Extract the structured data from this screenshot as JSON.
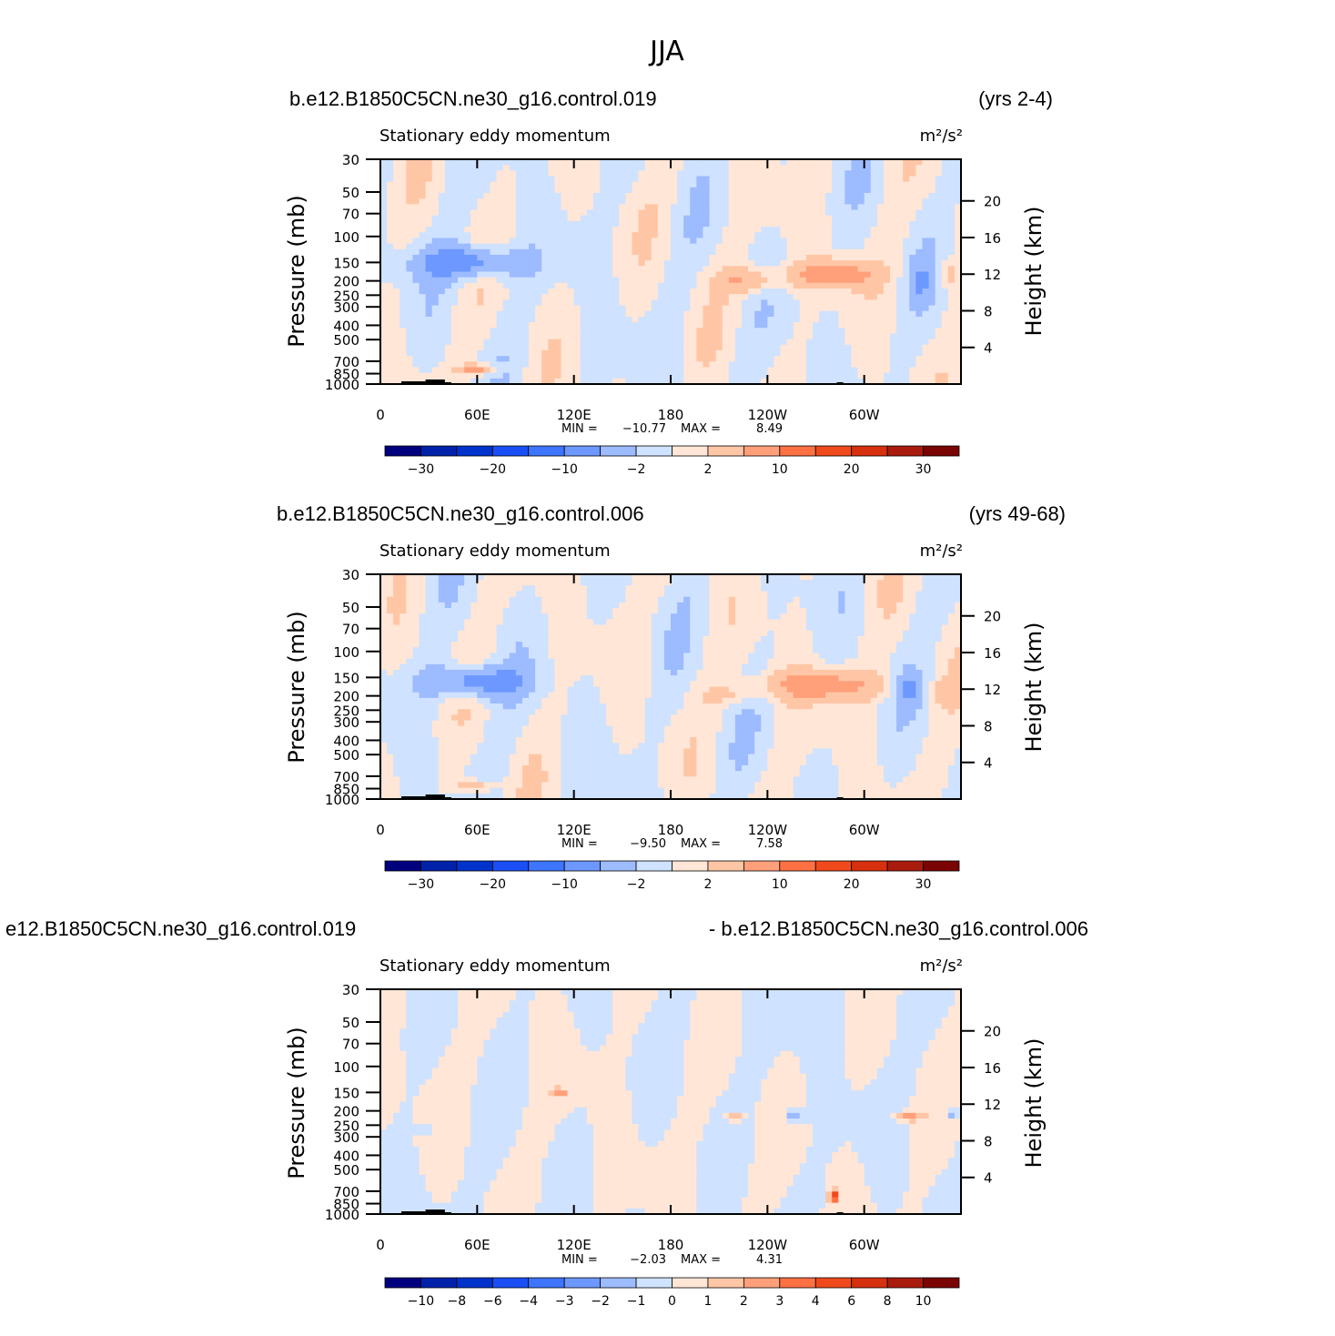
{
  "title": "JJA",
  "colors": {
    "palette": [
      "#00007f",
      "#0022aa",
      "#0033cc",
      "#1a4ff5",
      "#3d75ff",
      "#6c98ff",
      "#9dbbff",
      "#cfe2ff",
      "#ffe6d6",
      "#ffc6a6",
      "#ffa07a",
      "#ff7043",
      "#f04a1c",
      "#d6300e",
      "#a91b0d",
      "#7a0403"
    ],
    "land": "#000000"
  },
  "panels": [
    {
      "left_title": "b.e12.B1850C5CN.ne30_g16.control.019",
      "right_title": "(yrs 2-4)",
      "variable": "Stationary eddy momentum",
      "units": "m²/s²",
      "min_label": "MIN =",
      "min_value": "−10.77",
      "max_label": "MAX =",
      "max_value": "8.49",
      "colorbar_labels": [
        "−30",
        "−20",
        "−10",
        "−2",
        "2",
        "10",
        "20",
        "30"
      ]
    },
    {
      "left_title": "b.e12.B1850C5CN.ne30_g16.control.006",
      "right_title": "(yrs 49-68)",
      "variable": "Stationary eddy momentum",
      "units": "m²/s²",
      "min_label": "MIN =",
      "min_value": "−9.50",
      "max_label": "MAX =",
      "max_value": "7.58",
      "colorbar_labels": [
        "−30",
        "−20",
        "−10",
        "−2",
        "2",
        "10",
        "20",
        "30"
      ]
    },
    {
      "left_title": "e12.B1850C5CN.ne30_g16.control.019",
      "right_title": "- b.e12.B1850C5CN.ne30_g16.control.006",
      "variable": "Stationary eddy momentum",
      "units": "m²/s²",
      "min_label": "MIN =",
      "min_value": "−2.03",
      "max_label": "MAX =",
      "max_value": "4.31",
      "colorbar_labels": [
        "−10",
        "−8",
        "−6",
        "−4",
        "−3",
        "−2",
        "−1",
        "0",
        "1",
        "2",
        "3",
        "4",
        "6",
        "8",
        "10"
      ]
    }
  ],
  "chart_data": [
    {
      "type": "heatmap",
      "title": "Stationary eddy momentum",
      "xlabel": "",
      "ylabel": "Pressure (mb)",
      "y2label": "Height (km)",
      "x_ticks": [
        "0",
        "60E",
        "120E",
        "180",
        "120W",
        "60W"
      ],
      "x_tick_values": [
        0,
        60,
        120,
        180,
        240,
        300
      ],
      "xlim": [
        0,
        360
      ],
      "y_ticks": [
        "30",
        "50",
        "70",
        "100",
        "150",
        "200",
        "250",
        "300",
        "400",
        "500",
        "700",
        "850",
        "1000"
      ],
      "y_tick_values": [
        30,
        50,
        70,
        100,
        150,
        200,
        250,
        300,
        400,
        500,
        700,
        850,
        1000
      ],
      "ylim": [
        1000,
        30
      ],
      "y_scale": "log",
      "y2_ticks": [
        "4",
        "8",
        "12",
        "16",
        "20"
      ],
      "y2_tick_values": [
        4,
        8,
        12,
        16,
        20
      ],
      "levels": [
        -30,
        -25,
        -20,
        -15,
        -10,
        -5,
        -2,
        0,
        2,
        5,
        10,
        15,
        20,
        25,
        30
      ],
      "min": -10.77,
      "max": 8.49,
      "features": [
        {
          "lon": 55,
          "p": 150,
          "value": -8,
          "sx": 22,
          "sy": 0.18
        },
        {
          "lon": 60,
          "p": 800,
          "value": 7,
          "sx": 8,
          "sy": 0.06
        },
        {
          "lon": 227,
          "p": 200,
          "value": 5,
          "sx": 13,
          "sy": 0.14
        },
        {
          "lon": 280,
          "p": 180,
          "value": 8,
          "sx": 18,
          "sy": 0.15
        },
        {
          "lon": 335,
          "p": 200,
          "value": -4,
          "sx": 5,
          "sy": 0.2
        },
        {
          "lon": 352,
          "p": 180,
          "value": 3,
          "sx": 4,
          "sy": 0.14
        }
      ]
    },
    {
      "type": "heatmap",
      "title": "Stationary eddy momentum",
      "xlabel": "",
      "ylabel": "Pressure (mb)",
      "y2label": "Height (km)",
      "x_ticks": [
        "0",
        "60E",
        "120E",
        "180",
        "120W",
        "60W"
      ],
      "x_tick_values": [
        0,
        60,
        120,
        180,
        240,
        300
      ],
      "xlim": [
        0,
        360
      ],
      "y_ticks": [
        "30",
        "50",
        "70",
        "100",
        "150",
        "200",
        "250",
        "300",
        "400",
        "500",
        "700",
        "850",
        "1000"
      ],
      "y_tick_values": [
        30,
        50,
        70,
        100,
        150,
        200,
        250,
        300,
        400,
        500,
        700,
        850,
        1000
      ],
      "ylim": [
        1000,
        30
      ],
      "y_scale": "log",
      "y2_ticks": [
        "4",
        "8",
        "12",
        "16",
        "20"
      ],
      "y2_tick_values": [
        4,
        8,
        12,
        16,
        20
      ],
      "levels": [
        -30,
        -25,
        -20,
        -15,
        -10,
        -5,
        -2,
        0,
        2,
        5,
        10,
        15,
        20,
        25,
        30
      ],
      "min": -9.5,
      "max": 7.58,
      "features": [
        {
          "lon": 58,
          "p": 160,
          "value": -8,
          "sx": 20,
          "sy": 0.18
        },
        {
          "lon": 58,
          "p": 820,
          "value": 6,
          "sx": 8,
          "sy": 0.06
        },
        {
          "lon": 215,
          "p": 200,
          "value": 3,
          "sx": 10,
          "sy": 0.08
        },
        {
          "lon": 275,
          "p": 170,
          "value": 7,
          "sx": 26,
          "sy": 0.17
        },
        {
          "lon": 328,
          "p": 180,
          "value": -5,
          "sx": 6,
          "sy": 0.17
        },
        {
          "lon": 350,
          "p": 190,
          "value": 3,
          "sx": 4,
          "sy": 0.13
        }
      ]
    },
    {
      "type": "heatmap",
      "title": "Stationary eddy momentum",
      "xlabel": "",
      "ylabel": "Pressure (mb)",
      "y2label": "Height (km)",
      "x_ticks": [
        "0",
        "60E",
        "120E",
        "180",
        "120W",
        "60W"
      ],
      "x_tick_values": [
        0,
        60,
        120,
        180,
        240,
        300
      ],
      "xlim": [
        0,
        360
      ],
      "y_ticks": [
        "30",
        "50",
        "70",
        "100",
        "150",
        "200",
        "250",
        "300",
        "400",
        "500",
        "700",
        "850",
        "1000"
      ],
      "y_tick_values": [
        30,
        50,
        70,
        100,
        150,
        200,
        250,
        300,
        400,
        500,
        700,
        850,
        1000
      ],
      "ylim": [
        1000,
        30
      ],
      "y_scale": "log",
      "y2_ticks": [
        "4",
        "8",
        "12",
        "16",
        "20"
      ],
      "y2_tick_values": [
        4,
        8,
        12,
        16,
        20
      ],
      "levels": [
        -10,
        -8,
        -6,
        -4,
        -3,
        -2,
        -1,
        0,
        1,
        2,
        3,
        4,
        6,
        8,
        10
      ],
      "min": -2.03,
      "max": 4.31,
      "features": [
        {
          "lon": 111,
          "p": 150,
          "value": 2.5,
          "sx": 4,
          "sy": 0.05
        },
        {
          "lon": 220,
          "p": 220,
          "value": 2.3,
          "sx": 4,
          "sy": 0.05
        },
        {
          "lon": 256,
          "p": 220,
          "value": -2,
          "sx": 4,
          "sy": 0.08
        },
        {
          "lon": 327,
          "p": 220,
          "value": 2.5,
          "sx": 6,
          "sy": 0.05
        },
        {
          "lon": 355,
          "p": 210,
          "value": -2,
          "sx": 3,
          "sy": 0.06
        },
        {
          "lon": 281,
          "p": 750,
          "value": 4.3,
          "sx": 2,
          "sy": 0.08
        },
        {
          "lon": 25,
          "p": 270,
          "value": -1.5,
          "sx": 5,
          "sy": 0.05
        }
      ]
    }
  ]
}
